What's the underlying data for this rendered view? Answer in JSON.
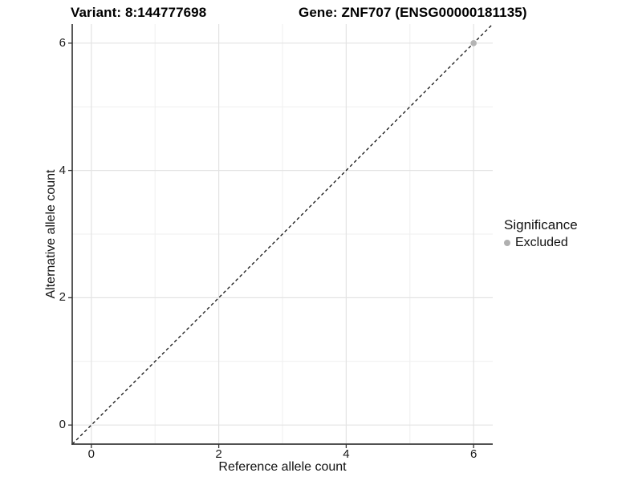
{
  "header": {
    "variant_title": "Variant: 8:144777698",
    "gene_title": "Gene: ZNF707 (ENSG00000181135)"
  },
  "chart_data": {
    "type": "scatter",
    "xlabel": "Reference allele count",
    "ylabel": "Alternative allele count",
    "xlim": [
      -0.3,
      6.3
    ],
    "ylim": [
      -0.3,
      6.3
    ],
    "x_ticks": [
      0,
      2,
      4,
      6
    ],
    "y_ticks": [
      0,
      2,
      4,
      6
    ],
    "minor_gridlines_x": [
      1,
      3,
      5
    ],
    "minor_gridlines_y": [
      1,
      3,
      5
    ],
    "grid": "on",
    "series": [
      {
        "name": "Excluded",
        "color": "#b4b4b4",
        "points": [
          {
            "x": 6,
            "y": 6
          }
        ]
      }
    ],
    "reference_line": {
      "kind": "identity y=x",
      "style": "dashed",
      "color": "#111111"
    },
    "legend": {
      "title": "Significance",
      "position": "right",
      "entries": [
        {
          "label": "Excluded",
          "color": "#b0b0b0"
        }
      ]
    }
  },
  "colors": {
    "background": "#ffffff",
    "grid_major": "#e3e3e3",
    "grid_minor": "#efefef",
    "axis_line": "#3a3a3a",
    "tick_mark": "#333333"
  }
}
